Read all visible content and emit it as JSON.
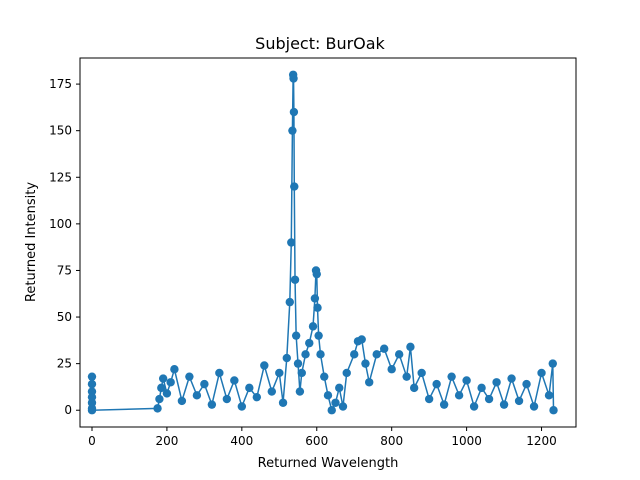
{
  "chart_data": {
    "type": "scatter",
    "title": "Subject: BurOak",
    "xlabel": "Returned Wavelength",
    "ylabel": "Returned Intensity",
    "xlim": [
      -32,
      1292
    ],
    "ylim": [
      -9,
      189
    ],
    "x_ticks": [
      0,
      200,
      400,
      600,
      800,
      1000,
      1200
    ],
    "y_ticks": [
      0,
      25,
      50,
      75,
      100,
      125,
      150,
      175
    ],
    "grid": false,
    "series": [
      {
        "color": "#1f77b4",
        "marker": "circle",
        "connected": true,
        "points": [
          [
            0,
            18
          ],
          [
            0,
            14
          ],
          [
            0,
            10
          ],
          [
            0,
            7
          ],
          [
            0,
            4
          ],
          [
            0,
            1
          ],
          [
            0,
            0
          ],
          [
            175,
            1
          ],
          [
            180,
            6
          ],
          [
            185,
            12
          ],
          [
            190,
            17
          ],
          [
            200,
            9
          ],
          [
            210,
            15
          ],
          [
            220,
            22
          ],
          [
            240,
            5
          ],
          [
            260,
            18
          ],
          [
            280,
            8
          ],
          [
            300,
            14
          ],
          [
            320,
            3
          ],
          [
            340,
            20
          ],
          [
            360,
            6
          ],
          [
            380,
            16
          ],
          [
            400,
            2
          ],
          [
            420,
            12
          ],
          [
            440,
            7
          ],
          [
            460,
            24
          ],
          [
            480,
            10
          ],
          [
            500,
            20
          ],
          [
            510,
            4
          ],
          [
            520,
            28
          ],
          [
            528,
            58
          ],
          [
            532,
            90
          ],
          [
            535,
            150
          ],
          [
            537,
            180
          ],
          [
            538,
            178
          ],
          [
            539,
            160
          ],
          [
            540,
            120
          ],
          [
            542,
            70
          ],
          [
            545,
            40
          ],
          [
            550,
            25
          ],
          [
            555,
            10
          ],
          [
            560,
            20
          ],
          [
            570,
            30
          ],
          [
            580,
            36
          ],
          [
            590,
            45
          ],
          [
            595,
            60
          ],
          [
            598,
            75
          ],
          [
            600,
            73
          ],
          [
            602,
            55
          ],
          [
            605,
            40
          ],
          [
            610,
            30
          ],
          [
            620,
            18
          ],
          [
            630,
            8
          ],
          [
            640,
            0
          ],
          [
            650,
            4
          ],
          [
            660,
            12
          ],
          [
            670,
            2
          ],
          [
            680,
            20
          ],
          [
            700,
            30
          ],
          [
            710,
            37
          ],
          [
            720,
            38
          ],
          [
            730,
            25
          ],
          [
            740,
            15
          ],
          [
            760,
            30
          ],
          [
            780,
            33
          ],
          [
            800,
            22
          ],
          [
            820,
            30
          ],
          [
            840,
            18
          ],
          [
            850,
            34
          ],
          [
            860,
            12
          ],
          [
            880,
            20
          ],
          [
            900,
            6
          ],
          [
            920,
            14
          ],
          [
            940,
            3
          ],
          [
            960,
            18
          ],
          [
            980,
            8
          ],
          [
            1000,
            16
          ],
          [
            1020,
            2
          ],
          [
            1040,
            12
          ],
          [
            1060,
            6
          ],
          [
            1080,
            15
          ],
          [
            1100,
            3
          ],
          [
            1120,
            17
          ],
          [
            1140,
            5
          ],
          [
            1160,
            14
          ],
          [
            1180,
            2
          ],
          [
            1200,
            20
          ],
          [
            1220,
            8
          ],
          [
            1230,
            25
          ],
          [
            1232,
            0
          ]
        ]
      }
    ]
  }
}
